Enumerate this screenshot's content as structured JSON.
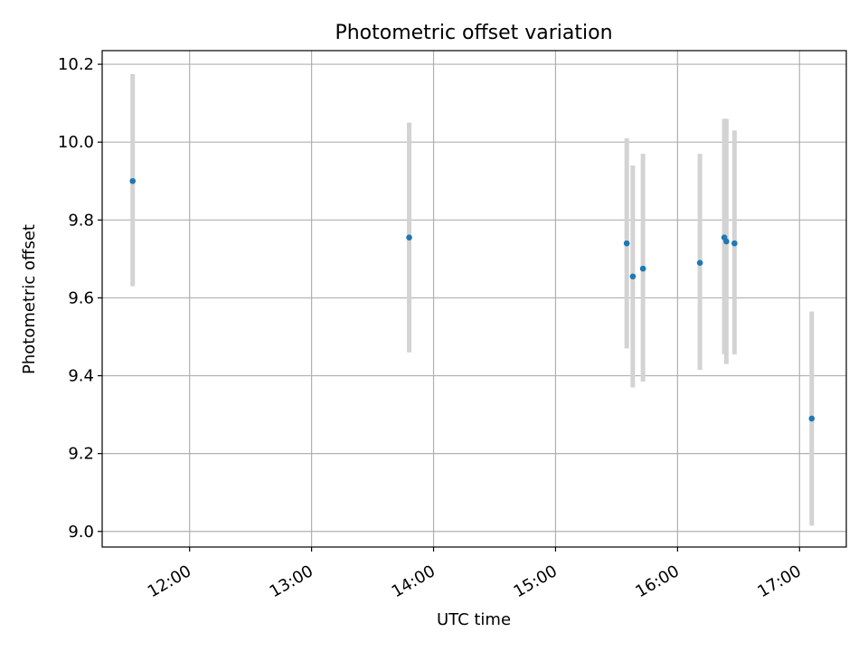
{
  "chart_data": {
    "type": "scatter",
    "title": "Photometric offset variation",
    "xlabel": "UTC time",
    "ylabel": "Photometric offset",
    "x_axis_type": "time",
    "x_ticks": [
      "12:00",
      "13:00",
      "14:00",
      "15:00",
      "16:00",
      "17:00"
    ],
    "xlim": [
      "11:17",
      "17:23"
    ],
    "y_ticks": [
      "9.0",
      "9.2",
      "9.4",
      "9.6",
      "9.8",
      "10.0",
      "10.2"
    ],
    "ylim": [
      8.96,
      10.235
    ],
    "grid": true,
    "error_bars": true,
    "series": [
      {
        "points": [
          {
            "x": "11:32",
            "y": 9.9,
            "ylow": 9.63,
            "yhigh": 10.175
          },
          {
            "x": "13:48",
            "y": 9.755,
            "ylow": 9.46,
            "yhigh": 10.05
          },
          {
            "x": "15:35",
            "y": 9.74,
            "ylow": 9.47,
            "yhigh": 10.01
          },
          {
            "x": "15:38",
            "y": 9.655,
            "ylow": 9.37,
            "yhigh": 9.94
          },
          {
            "x": "15:43",
            "y": 9.675,
            "ylow": 9.385,
            "yhigh": 9.97
          },
          {
            "x": "16:11",
            "y": 9.69,
            "ylow": 9.415,
            "yhigh": 9.97
          },
          {
            "x": "16:23",
            "y": 9.755,
            "ylow": 9.455,
            "yhigh": 10.06
          },
          {
            "x": "16:24",
            "y": 9.745,
            "ylow": 9.43,
            "yhigh": 10.06
          },
          {
            "x": "16:28",
            "y": 9.74,
            "ylow": 9.455,
            "yhigh": 10.03
          },
          {
            "x": "17:06",
            "y": 9.29,
            "ylow": 9.015,
            "yhigh": 9.565
          }
        ]
      }
    ],
    "colors": {
      "point": "#1f77b4",
      "error_bar": "#d3d3d3",
      "grid": "#b0b0b0",
      "axes": "#000000"
    }
  }
}
